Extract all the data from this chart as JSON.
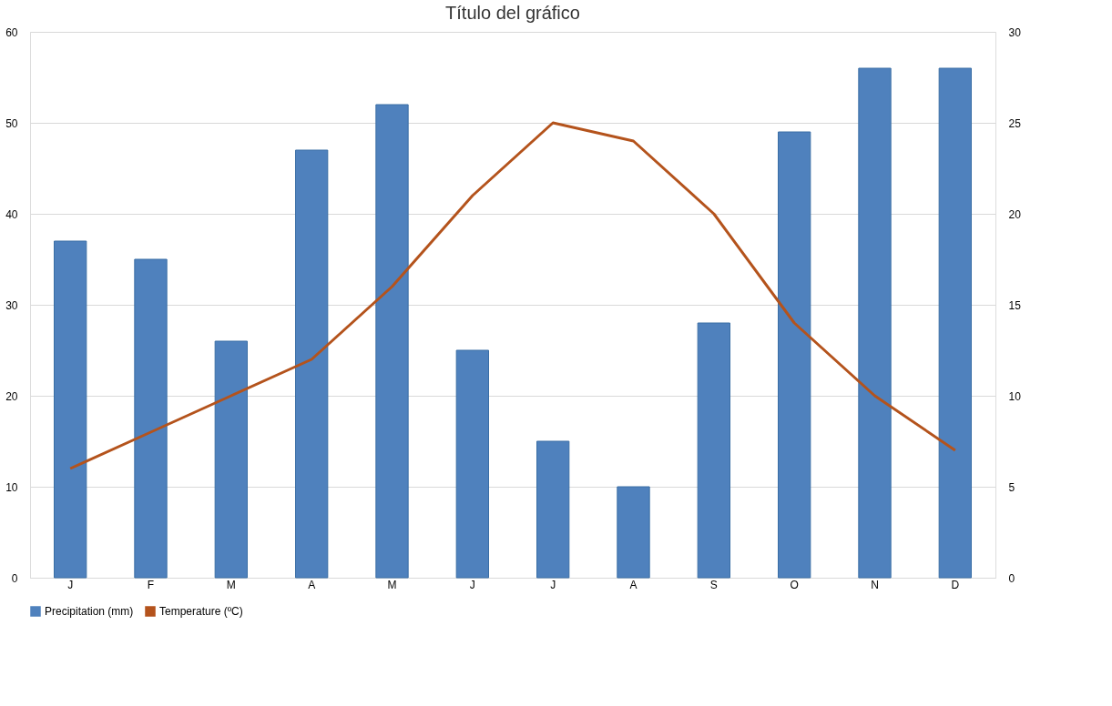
{
  "chart_data": {
    "type": "bar",
    "title": "Título del gráfico",
    "categories": [
      "J",
      "F",
      "M",
      "A",
      "M",
      "J",
      "J",
      "A",
      "S",
      "O",
      "N",
      "D"
    ],
    "series": [
      {
        "name": "Precipitation (mm)",
        "color": "#4f81bd",
        "values": [
          37,
          35,
          26,
          47,
          52,
          25,
          15,
          10,
          28,
          49,
          56,
          56
        ]
      },
      {
        "name": "Temperature (ºC)",
        "type": "line",
        "axis": "y2",
        "color": "#b4531c",
        "values": [
          6,
          8,
          10,
          12,
          16,
          21,
          25,
          24,
          20,
          14,
          10,
          7
        ]
      }
    ],
    "ylim": [
      0,
      60
    ],
    "yticks": [
      0,
      10,
      20,
      30,
      40,
      50,
      60
    ],
    "y2lim": [
      0,
      30
    ],
    "y2ticks": [
      0,
      5,
      10,
      15,
      20,
      25,
      30
    ],
    "grid": "y",
    "legend": "bottom",
    "marker": "none",
    "line_style": "solid"
  }
}
